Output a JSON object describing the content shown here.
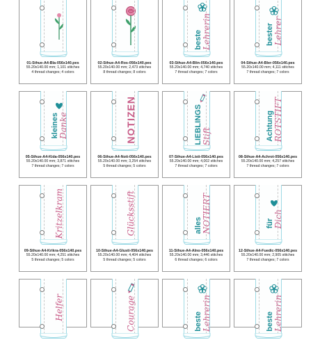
{
  "cards": [
    {
      "file": "01-Sthue-A4-Bla-056x140.pes",
      "size": "55.20x140.00 mm; 1,101 stitches",
      "info": "4 thread changes; 4 colors",
      "icon": "leaf-flower-icon",
      "lines": [],
      "style": "sans",
      "color": "#2f8f5e"
    },
    {
      "file": "02-Sthue-A4-Ros-056x140.pes",
      "size": "55.20x140.00 mm; 2,473 stitches",
      "info": "8 thread changes; 8 colors",
      "icon": "rose-icon",
      "lines": [],
      "style": "sans",
      "color": "#c75a86"
    },
    {
      "file": "03-Sthue-A4-Blin-056x140.pes",
      "size": "55.20x140.00 mm; 4,740 stitches",
      "info": "7 thread changes; 7 colors",
      "icon": "flower-outline-icon",
      "lines": [
        "beste",
        "Lehrerin"
      ],
      "style": "mixed",
      "color": "#1f8f98"
    },
    {
      "file": "04-Sthue-A4-Bler-056x140.pes",
      "size": "55.20x140.00 mm; 4,111 stitches",
      "info": "7 thread changes; 7 colors",
      "icon": "flower-outline-icon",
      "lines": [
        "bester",
        "Lehrer"
      ],
      "style": "mixed",
      "color": "#1f8f98"
    },
    {
      "file": "05-Sthue-A4-Kida-056x140.pes",
      "size": "55.20x140.00 mm; 3,871 stitches",
      "info": "7 thread changes; 7 colors",
      "icon": "heart-icon",
      "lines": [
        "kleines",
        "Danke"
      ],
      "style": "mixed",
      "color": "#1f8f98"
    },
    {
      "file": "06-Sthue-A4-Noti-056x140.pes",
      "size": "55.20x140.00 mm; 3,254 stitches",
      "info": "5 thread changes; 5 colors",
      "icon": "",
      "lines": [
        "NOTIZEN"
      ],
      "style": "bigscript",
      "color": "#c75a86"
    },
    {
      "file": "07-Sthue-A4-Listi-056x140.pes",
      "size": "55.20x140.00 mm; 4,002 stitches",
      "info": "7 thread changes; 7 colors",
      "icon": "pencil-icon",
      "lines": [
        "LIEBLINGS",
        "Stift"
      ],
      "style": "mixed",
      "color": "#1f8f98"
    },
    {
      "file": "08-Sthue-A4-Achrot-056x140.pes",
      "size": "55.20x140.00 mm; 4,257 stitches",
      "info": "7 thread changes; 7 colors",
      "icon": "",
      "lines": [
        "Achtung",
        "ROTSTIFT"
      ],
      "style": "mixed",
      "color": "#c75a86"
    },
    {
      "file": "09-Sthue-A4-Krikra-056x140.pes",
      "size": "55.20x140.00 mm; 4,251 stitches",
      "info": "5 thread changes; 5 colors",
      "icon": "",
      "lines": [
        "Kritzelkram"
      ],
      "style": "script",
      "color": "#c75a86"
    },
    {
      "file": "10-Sthue-A4-Glusti-056x140.pes",
      "size": "55.20x140.00 mm; 4,404 stitches",
      "info": "5 thread changes; 5 colors",
      "icon": "",
      "lines": [
        "Glücksstift"
      ],
      "style": "script",
      "color": "#c75a86"
    },
    {
      "file": "11-Sthue-A4-Alno-056x140.pes",
      "size": "55.20x140.00 mm; 3,446 stitches",
      "info": "6 thread changes; 6 colors",
      "icon": "",
      "lines": [
        "alles",
        "NOTIERT"
      ],
      "style": "mixed",
      "color": "#1f8f98"
    },
    {
      "file": "12-Sthue-A4-Fuedic-056x140.pes",
      "size": "55.20x140.00 mm; 2,905 stitches",
      "info": "7 thread changes; 7 colors",
      "icon": "heart-icon",
      "lines": [
        "für",
        "Dich"
      ],
      "style": "mixed",
      "color": "#1f8f98"
    },
    {
      "file": "",
      "size": "",
      "info": "",
      "icon": "",
      "lines": [
        "Helfer"
      ],
      "style": "script",
      "color": "#c75a86",
      "partial": true
    },
    {
      "file": "",
      "size": "",
      "info": "",
      "icon": "pencil-icon",
      "lines": [
        "Courage"
      ],
      "style": "script",
      "color": "#c75a86",
      "partial": true
    },
    {
      "file": "",
      "size": "",
      "info": "",
      "icon": "flower-outline-icon",
      "lines": [
        "beste",
        "Lehrerin"
      ],
      "style": "mixed",
      "color": "#1f8f98",
      "partial": true
    },
    {
      "file": "",
      "size": "",
      "info": "",
      "icon": "flower-outline-icon",
      "lines": [
        "beste",
        "Lehrerin"
      ],
      "style": "mixed",
      "color": "#1f8f98",
      "partial": true
    }
  ],
  "colors": {
    "teal": "#1f8f98",
    "pink": "#c75a86",
    "green": "#2f8f5e",
    "strip_border": "#9cd9e4",
    "card_border": "#9a9a9a"
  }
}
